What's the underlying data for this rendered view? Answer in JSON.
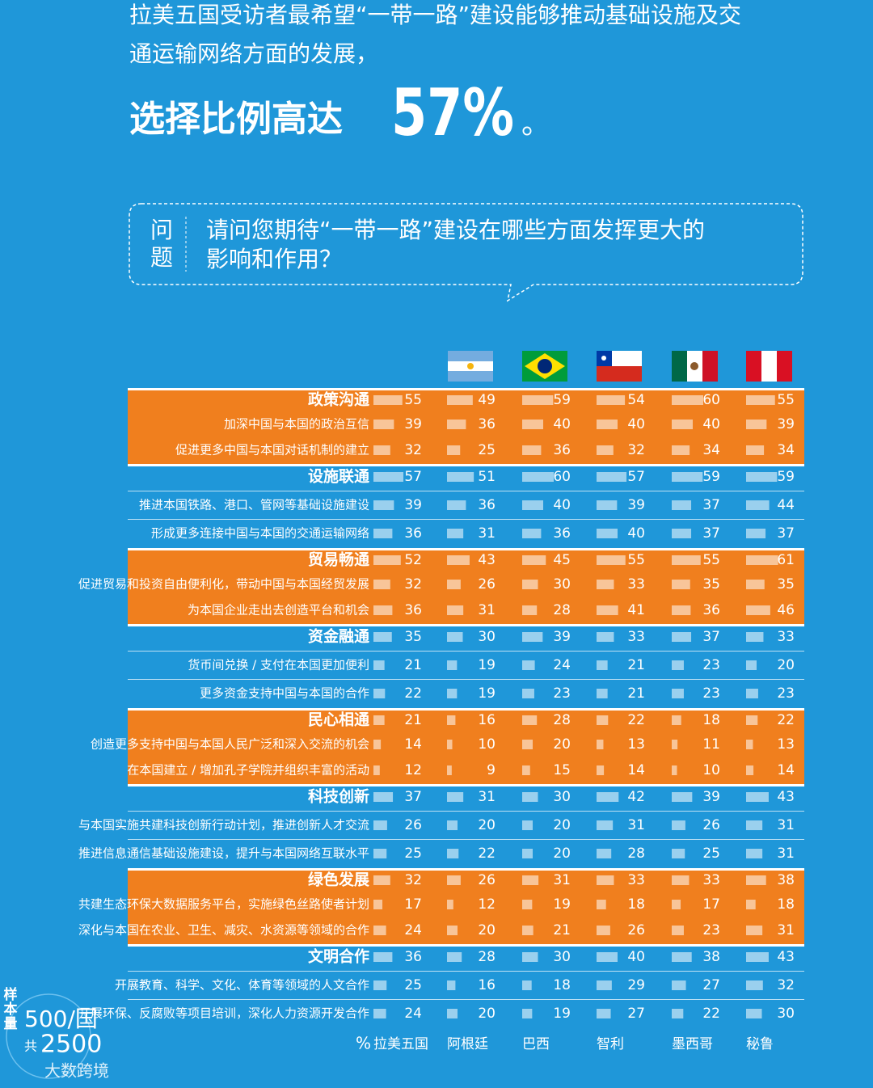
{
  "header": {
    "lines": [
      "拉美五国受访者最希望“一带一路”建设能够推动基础设施及交",
      "通运输网络方面的发展，"
    ],
    "highlight_prefix": "选择比例高达",
    "highlight_value": "57%",
    "highlight_suffix": "。"
  },
  "question": {
    "tag": "问题",
    "lines": [
      "请问您期待“一带一路”建设在哪些方面发挥更大的",
      "影响和作用？"
    ]
  },
  "table": {
    "unit": "%",
    "columns": [
      "拉美五国",
      "阿根廷",
      "巴西",
      "智利",
      "墨西哥",
      "秘鲁"
    ],
    "groups": [
      {
        "name": "政策沟通",
        "values": [
          55,
          49,
          59,
          54,
          60,
          55
        ],
        "items": [
          {
            "label": "加深中国与本国的政治互信",
            "values": [
              39,
              36,
              40,
              40,
              40,
              39
            ]
          },
          {
            "label": "促进更多中国与本国对话机制的建立",
            "values": [
              32,
              25,
              36,
              32,
              34,
              34
            ]
          }
        ]
      },
      {
        "name": "设施联通",
        "values": [
          57,
          51,
          60,
          57,
          59,
          59
        ],
        "items": [
          {
            "label": "推进本国铁路、港口、管网等基础设施建设",
            "values": [
              39,
              36,
              40,
              39,
              37,
              44
            ]
          },
          {
            "label": "形成更多连接中国与本国的交通运输网络",
            "values": [
              36,
              31,
              36,
              40,
              37,
              37
            ]
          }
        ]
      },
      {
        "name": "贸易畅通",
        "values": [
          52,
          43,
          45,
          55,
          55,
          61
        ],
        "items": [
          {
            "label": "促进贸易和投资自由便利化，带动中国与本国经贸发展",
            "values": [
              32,
              26,
              30,
              33,
              35,
              35
            ]
          },
          {
            "label": "为本国企业走出去创造平台和机会",
            "values": [
              36,
              31,
              28,
              41,
              36,
              46
            ]
          }
        ]
      },
      {
        "name": "资金融通",
        "values": [
          35,
          30,
          39,
          33,
          37,
          33
        ],
        "items": [
          {
            "label": "货币间兑换 / 支付在本国更加便利",
            "values": [
              21,
              19,
              24,
              21,
              23,
              20
            ]
          },
          {
            "label": "更多资金支持中国与本国的合作",
            "values": [
              22,
              19,
              23,
              21,
              23,
              23
            ]
          }
        ]
      },
      {
        "name": "民心相通",
        "values": [
          21,
          16,
          28,
          22,
          18,
          22
        ],
        "items": [
          {
            "label": "创造更多支持中国与本国人民广泛和深入交流的机会",
            "values": [
              14,
              10,
              20,
              13,
              11,
              13
            ]
          },
          {
            "label": "在本国建立 / 增加孔子学院并组织丰富的活动",
            "values": [
              12,
              9,
              15,
              14,
              10,
              14
            ]
          }
        ]
      },
      {
        "name": "科技创新",
        "values": [
          37,
          31,
          30,
          42,
          39,
          43
        ],
        "items": [
          {
            "label": "与本国实施共建科技创新行动计划，推进创新人才交流",
            "values": [
              26,
              20,
              20,
              31,
              26,
              31
            ]
          },
          {
            "label": "推进信息通信基础设施建设，提升与本国网络互联水平",
            "values": [
              25,
              22,
              20,
              28,
              25,
              31
            ]
          }
        ]
      },
      {
        "name": "绿色发展",
        "values": [
          32,
          26,
          31,
          33,
          33,
          38
        ],
        "items": [
          {
            "label": "共建生态环保大数据服务平台，实施绿色丝路使者计划",
            "values": [
              17,
              12,
              19,
              18,
              17,
              18
            ]
          },
          {
            "label": "深化与本国在农业、卫生、减灾、水资源等领域的合作",
            "values": [
              24,
              20,
              21,
              26,
              23,
              31
            ]
          }
        ]
      },
      {
        "name": "文明合作",
        "values": [
          36,
          28,
          30,
          40,
          38,
          43
        ],
        "items": [
          {
            "label": "开展教育、科学、文化、体育等领域的人文合作",
            "values": [
              25,
              16,
              18,
              29,
              27,
              32
            ]
          },
          {
            "label": "开展环保、反腐败等项目培训，深化人力资源开发合作",
            "values": [
              24,
              20,
              19,
              27,
              22,
              30
            ]
          }
        ]
      }
    ]
  },
  "sample": {
    "title": "样本量",
    "per": "500/国",
    "total_prefix": "共",
    "total": "2500"
  },
  "watermark": "大数跨境"
}
